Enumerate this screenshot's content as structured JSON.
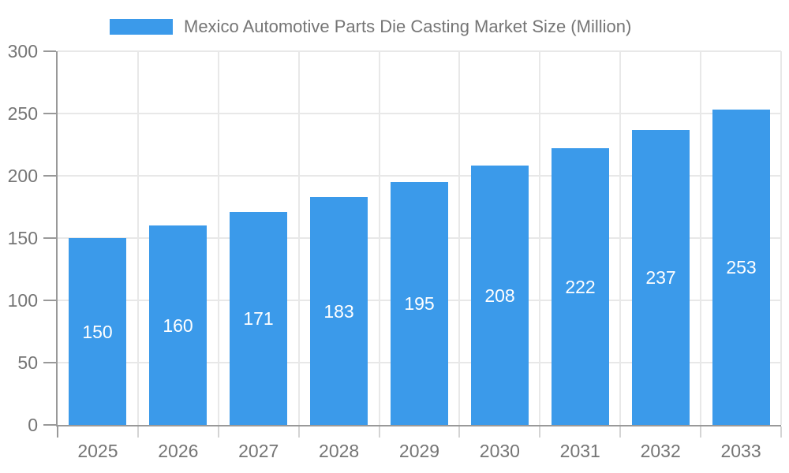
{
  "chart_data": {
    "type": "bar",
    "title": "Mexico Automotive Parts Die Casting Market Size (Million)",
    "legend_entries": [
      "Mexico Automotive Parts Die Casting Market Size (Million)"
    ],
    "legend_position": "top",
    "categories": [
      "2025",
      "2026",
      "2027",
      "2028",
      "2029",
      "2030",
      "2031",
      "2032",
      "2033"
    ],
    "values": [
      150,
      160,
      171,
      183,
      195,
      208,
      222,
      237,
      253
    ],
    "value_labels": [
      "150",
      "160",
      "171",
      "183",
      "195",
      "208",
      "222",
      "237",
      "253"
    ],
    "xlabel": "",
    "ylabel": "",
    "ylim": [
      0,
      300
    ],
    "ytick_step": 50,
    "ytick_labels": [
      "0",
      "50",
      "100",
      "150",
      "200",
      "250",
      "300"
    ],
    "grid": true,
    "colors": {
      "bar": "#3B9AEA",
      "value_label": "#ffffff",
      "axis_label": "#757575",
      "title_text": "#757575",
      "axis_line": "#999999",
      "gridline": "#e8e8e8",
      "outer_tick": "#d4d4d4"
    }
  }
}
